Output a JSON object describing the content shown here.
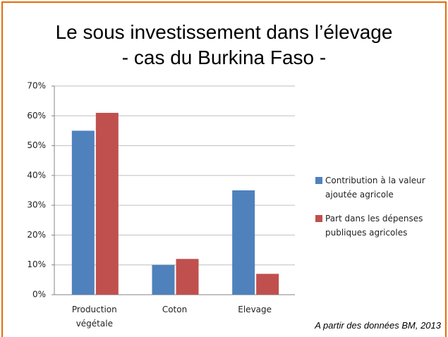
{
  "chart_data": {
    "type": "bar",
    "title": "Le sous investissement dans l’élevage",
    "subtitle": "- cas du Burkina Faso -",
    "categories": [
      "Production végétale",
      "Coton",
      "Elevage"
    ],
    "series": [
      {
        "name": "Contribution à la valeur ajoutée agricole",
        "color": "#4f81bd",
        "values": [
          55,
          10,
          35
        ]
      },
      {
        "name": "Part dans les dépenses publiques agricoles",
        "color": "#c0504d",
        "values": [
          61,
          12,
          7
        ]
      }
    ],
    "ylim": [
      0,
      70
    ],
    "yticks": [
      {
        "value": 0,
        "label": "0%"
      },
      {
        "value": 10,
        "label": "10%"
      },
      {
        "value": 20,
        "label": "20%"
      },
      {
        "value": 30,
        "label": "30%"
      },
      {
        "value": 40,
        "label": "40%"
      },
      {
        "value": 50,
        "label": "50%"
      },
      {
        "value": 60,
        "label": "60%"
      },
      {
        "value": 70,
        "label": "70%"
      }
    ],
    "grid": true,
    "legend": "right",
    "source": "A partir des données BM, 2013"
  }
}
